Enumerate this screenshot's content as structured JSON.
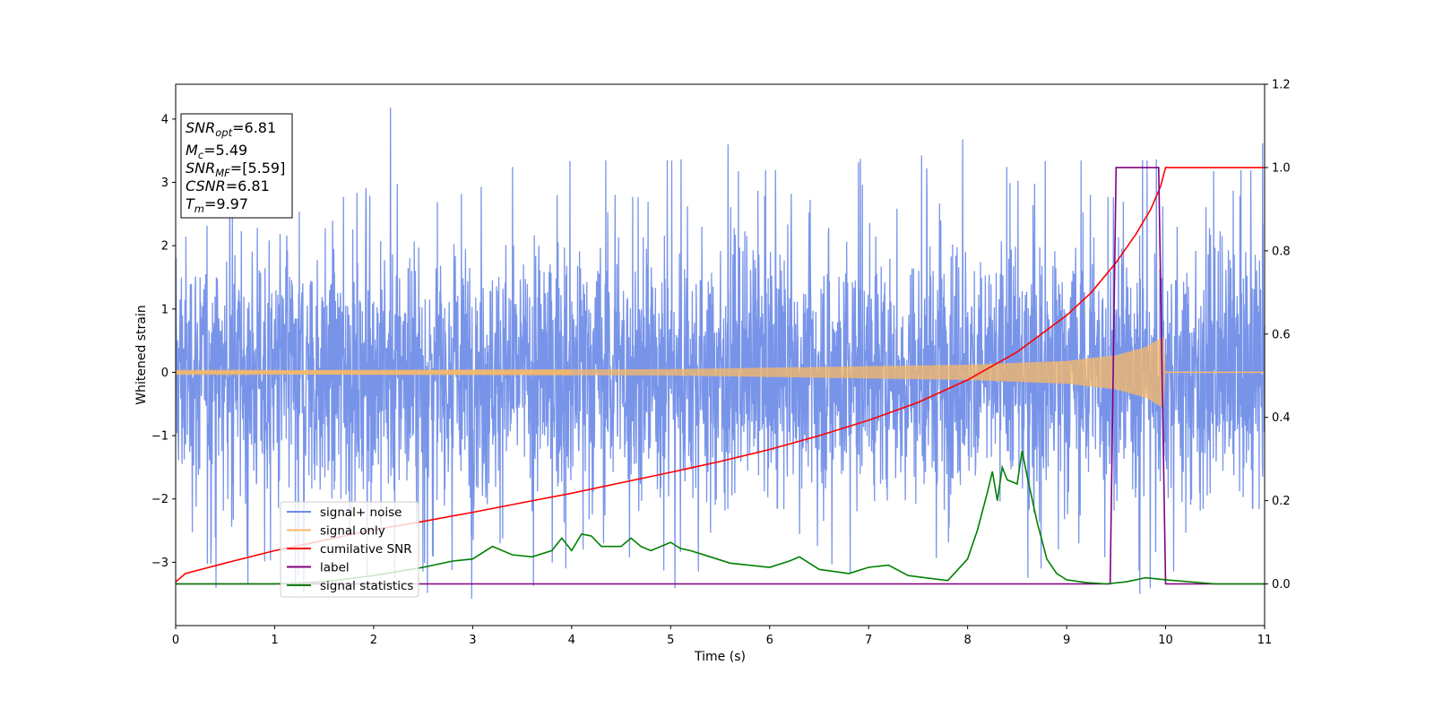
{
  "chart_data": {
    "type": "line",
    "xlabel": "Time (s)",
    "ylabel": "Whitened strain",
    "xlim": [
      0,
      11
    ],
    "ylim_left": [
      -4.0,
      4.55
    ],
    "ylim_right": [
      -0.1,
      1.2
    ],
    "xticks": [
      "0",
      "1",
      "2",
      "3",
      "4",
      "5",
      "6",
      "7",
      "8",
      "9",
      "10",
      "11"
    ],
    "yticks_left": [
      "−3",
      "−2",
      "−1",
      "0",
      "1",
      "2",
      "3",
      "4"
    ],
    "yticks_right": [
      "0.0",
      "0.2",
      "0.4",
      "0.6",
      "0.8",
      "1.0",
      "1.2"
    ],
    "grid": false,
    "legend_position": "lower-left",
    "info_box": {
      "lines": [
        {
          "main": "SNR",
          "sub": "opt",
          "value": "=6.81"
        },
        {
          "main": "M",
          "sub": "c",
          "value": "=5.49"
        },
        {
          "main": "SNR",
          "sub": "MF",
          "value": "=[5.59]"
        },
        {
          "main": "CSNR",
          "sub": "",
          "value": "=6.81"
        },
        {
          "main": "T",
          "sub": "m",
          "value": "=9.97"
        }
      ]
    },
    "series": [
      {
        "name": "signal+ noise",
        "axis": "left",
        "color": "#6d8be7",
        "kind": "noise",
        "envelope_typical": 2.0,
        "peak_max": 4.18,
        "peak_min": -3.58,
        "x_range": [
          0,
          11
        ]
      },
      {
        "name": "signal only",
        "axis": "left",
        "color": "#f5b96a",
        "kind": "chirp",
        "amplitude_points": [
          [
            0,
            0.03
          ],
          [
            5,
            0.05
          ],
          [
            8,
            0.12
          ],
          [
            9,
            0.18
          ],
          [
            9.5,
            0.27
          ],
          [
            9.8,
            0.4
          ],
          [
            9.98,
            0.57
          ],
          [
            10.0,
            0.0
          ],
          [
            11,
            0.0
          ]
        ]
      },
      {
        "name": "cumilative SNR",
        "axis": "right",
        "color": "#ff0000",
        "x": [
          0,
          0.1,
          0.5,
          1,
          1.5,
          2,
          2.5,
          3,
          3.5,
          4,
          4.5,
          5,
          5.5,
          6,
          6.5,
          7,
          7.5,
          8,
          8.5,
          9,
          9.25,
          9.5,
          9.7,
          9.85,
          9.95,
          10.0,
          11
        ],
        "y": [
          0.005,
          0.025,
          0.05,
          0.08,
          0.105,
          0.13,
          0.15,
          0.172,
          0.195,
          0.218,
          0.243,
          0.268,
          0.294,
          0.323,
          0.356,
          0.393,
          0.436,
          0.49,
          0.557,
          0.645,
          0.7,
          0.772,
          0.84,
          0.9,
          0.955,
          1.0,
          1.0
        ]
      },
      {
        "name": "label",
        "axis": "right",
        "color": "#800080",
        "x": [
          0,
          9.44,
          9.5,
          9.93,
          10.0,
          11
        ],
        "y": [
          0,
          0,
          1,
          1,
          0,
          0
        ]
      },
      {
        "name": "signal statistics",
        "axis": "right",
        "color": "#008000",
        "x": [
          0,
          1,
          1.5,
          2,
          2.5,
          2.6,
          2.8,
          3.0,
          3.2,
          3.4,
          3.6,
          3.8,
          3.9,
          4.0,
          4.1,
          4.2,
          4.3,
          4.5,
          4.6,
          4.7,
          4.8,
          5.0,
          5.1,
          5.2,
          5.4,
          5.6,
          6.0,
          6.2,
          6.3,
          6.5,
          6.8,
          7.0,
          7.2,
          7.4,
          7.8,
          8.0,
          8.1,
          8.2,
          8.25,
          8.3,
          8.35,
          8.4,
          8.5,
          8.55,
          8.6,
          8.7,
          8.8,
          8.9,
          9.0,
          9.2,
          9.4,
          9.6,
          9.8,
          10.0,
          10.5,
          11
        ],
        "y": [
          0.0,
          0.0,
          0.005,
          0.02,
          0.04,
          0.045,
          0.055,
          0.06,
          0.09,
          0.07,
          0.065,
          0.08,
          0.11,
          0.08,
          0.12,
          0.115,
          0.09,
          0.09,
          0.11,
          0.09,
          0.08,
          0.1,
          0.085,
          0.08,
          0.065,
          0.05,
          0.04,
          0.055,
          0.065,
          0.035,
          0.025,
          0.04,
          0.045,
          0.02,
          0.008,
          0.06,
          0.13,
          0.22,
          0.27,
          0.2,
          0.28,
          0.25,
          0.24,
          0.32,
          0.26,
          0.15,
          0.06,
          0.025,
          0.01,
          0.003,
          0.0,
          0.005,
          0.015,
          0.01,
          0.0,
          0.0
        ]
      }
    ]
  }
}
